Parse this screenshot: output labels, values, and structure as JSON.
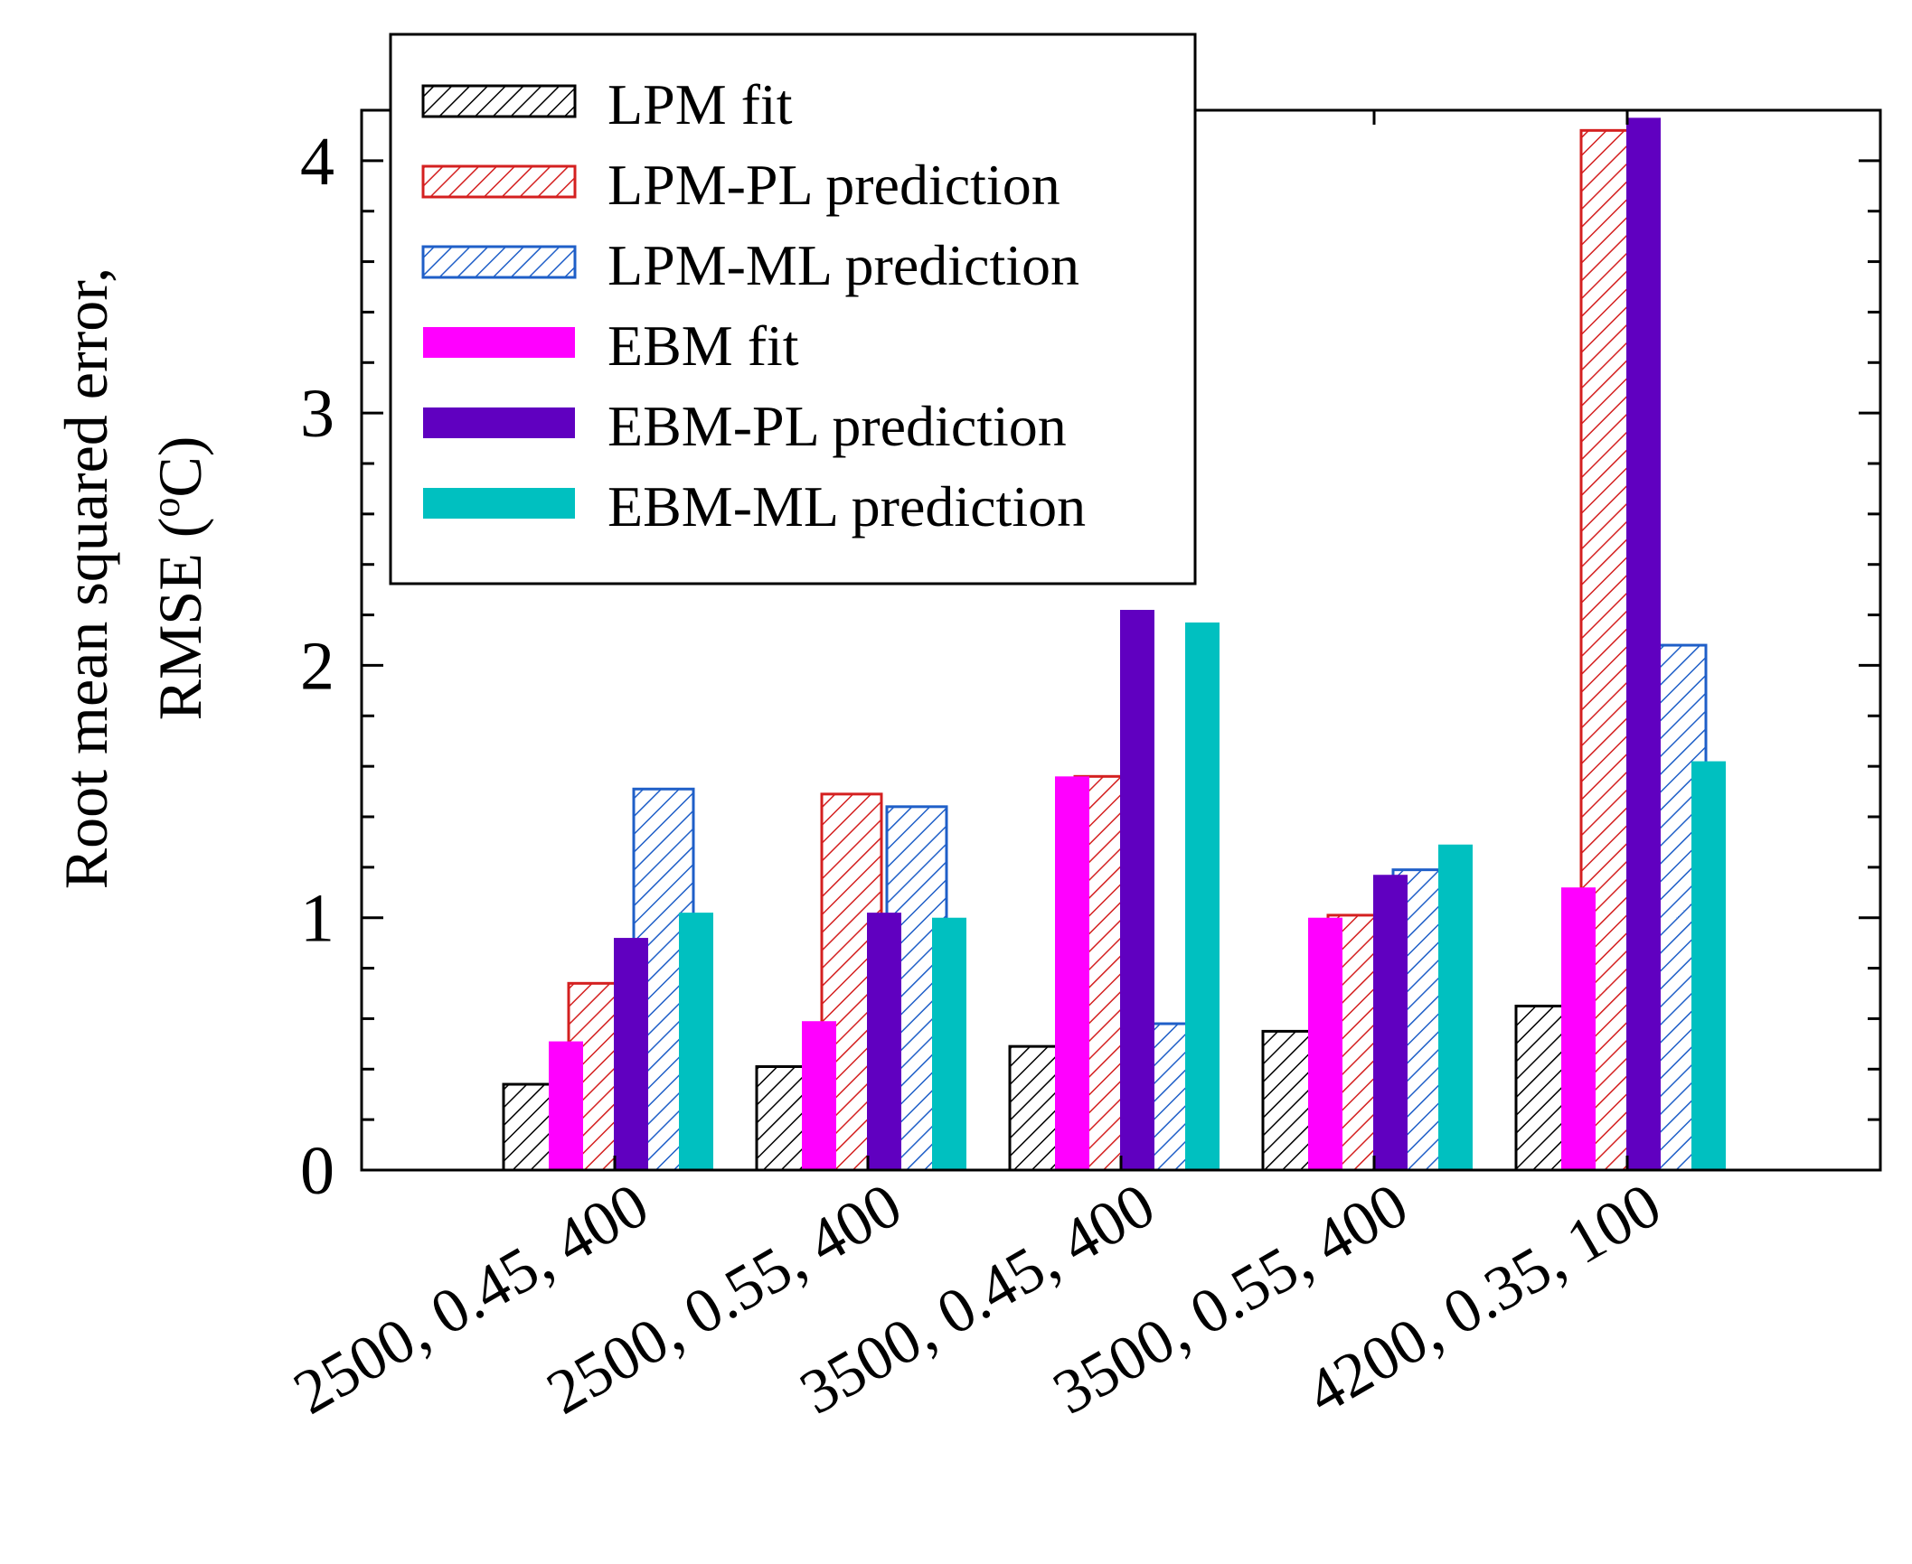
{
  "chart_data": {
    "type": "bar",
    "title": "",
    "xlabel": "",
    "ylabel_line1": "Root mean squared error,",
    "ylabel_line2_prefix": "RMSE (",
    "ylabel_line2_sup": "o",
    "ylabel_line2_suffix": "C)",
    "ylim": [
      0,
      4.2
    ],
    "yticks": [
      0,
      1,
      2,
      3,
      4
    ],
    "ytick_labels": [
      "0",
      "1",
      "2",
      "3",
      "4"
    ],
    "yminor_step": 0.2,
    "grid": false,
    "legend_position": "top-left",
    "categories": [
      "2500, 0.45, 400",
      "2500, 0.55, 400",
      "3500, 0.45, 400",
      "3500, 0.55, 400",
      "4200, 0.35, 100"
    ],
    "series": [
      {
        "name": "LPM fit",
        "style": "hatch",
        "color": "#000000",
        "layer": "back",
        "slot": 0,
        "values": [
          0.34,
          0.41,
          0.49,
          0.55,
          0.65
        ]
      },
      {
        "name": "LPM-PL prediction",
        "style": "hatch",
        "color": "#d42020",
        "layer": "back",
        "slot": 2,
        "values": [
          0.74,
          1.49,
          1.56,
          1.01,
          4.12
        ]
      },
      {
        "name": "LPM-ML prediction",
        "style": "hatch",
        "color": "#1f5fc8",
        "layer": "back",
        "slot": 4,
        "values": [
          1.51,
          1.44,
          0.58,
          1.19,
          2.08
        ]
      },
      {
        "name": "EBM fit",
        "style": "solid",
        "color": "#ff00ff",
        "layer": "front",
        "slot": 1,
        "values": [
          0.51,
          0.59,
          1.56,
          1.0,
          1.12
        ]
      },
      {
        "name": "EBM-PL prediction",
        "style": "solid",
        "color": "#6000c0",
        "layer": "front",
        "slot": 3,
        "values": [
          0.92,
          1.02,
          2.22,
          1.17,
          4.17
        ]
      },
      {
        "name": "EBM-ML prediction",
        "style": "solid",
        "color": "#00c0c0",
        "layer": "front",
        "slot": 5,
        "values": [
          1.02,
          1.0,
          2.17,
          1.29,
          1.62
        ]
      }
    ]
  }
}
